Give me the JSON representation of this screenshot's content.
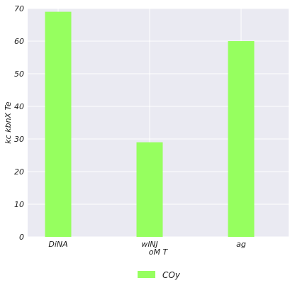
{
  "chart_data": {
    "type": "bar",
    "categories": [
      "DiNA",
      "wlNJ",
      "ag"
    ],
    "series": [
      {
        "name": "COy",
        "values": [
          69,
          29,
          60
        ]
      }
    ],
    "xlabel": "oM T",
    "ylabel": "kc kbnX Te",
    "ylim": [
      0,
      70
    ],
    "yticks": [
      0,
      10,
      20,
      30,
      40,
      50,
      60,
      70
    ],
    "grid": true,
    "legend_position": "bottom-center",
    "colors": {
      "bar": "#96ff5f",
      "plot_background": "#eaeaf2",
      "grid": "#ffffff"
    }
  }
}
